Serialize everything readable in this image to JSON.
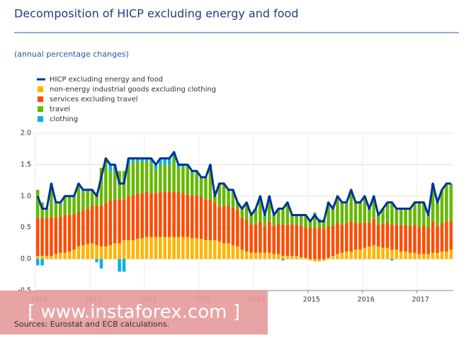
{
  "chart_data": {
    "type": "bar",
    "stacked": true,
    "title": "Decomposition of HICP excluding energy and food",
    "subtitle": "(annual percentage changes)",
    "source": "Sources: Eurostat and ECB calculations.",
    "watermark": "[ www.instaforex.com ]",
    "categories": [
      "2010",
      null,
      null,
      null,
      null,
      null,
      null,
      null,
      null,
      null,
      null,
      null,
      "2011",
      null,
      null,
      null,
      null,
      null,
      null,
      null,
      null,
      null,
      null,
      null,
      "2012",
      null,
      null,
      null,
      null,
      null,
      null,
      null,
      null,
      null,
      null,
      null,
      "2013",
      null,
      null,
      null,
      null,
      null,
      null,
      null,
      null,
      null,
      null,
      null,
      "2014",
      null,
      null,
      null,
      null,
      null,
      null,
      null,
      null,
      null,
      null,
      null,
      "2015",
      null,
      null,
      null,
      null,
      null,
      null,
      null,
      null,
      null,
      null,
      null,
      "2016",
      null,
      null,
      null,
      null,
      null,
      null,
      null,
      null,
      null,
      null,
      null,
      "2017",
      null,
      null,
      null,
      null,
      null,
      null,
      null
    ],
    "ylim": [
      -0.5,
      2.0
    ],
    "yticks": [
      {
        "value": 2,
        "label": "2.0"
      },
      1.5,
      {
        "value": 1,
        "label": "1.0"
      },
      0.5,
      {
        "value": 0,
        "label": "0.0"
      },
      -0.5
    ],
    "grid": true,
    "series": [
      {
        "name": "HICP excluding energy and food",
        "type": "line",
        "color": "#003299",
        "values": [
          1.0,
          0.8,
          0.8,
          1.2,
          0.9,
          0.9,
          1.0,
          1.0,
          1.0,
          1.2,
          1.1,
          1.1,
          1.1,
          1.0,
          1.3,
          1.6,
          1.5,
          1.5,
          1.2,
          1.2,
          1.6,
          1.6,
          1.6,
          1.6,
          1.6,
          1.6,
          1.5,
          1.6,
          1.6,
          1.6,
          1.7,
          1.5,
          1.5,
          1.5,
          1.4,
          1.4,
          1.3,
          1.3,
          1.5,
          1.0,
          1.2,
          1.2,
          1.1,
          1.1,
          0.9,
          0.8,
          0.9,
          0.7,
          0.8,
          1.0,
          0.7,
          1.0,
          0.7,
          0.8,
          0.8,
          0.9,
          0.7,
          0.7,
          0.7,
          0.7,
          0.6,
          0.7,
          0.6,
          0.6,
          0.9,
          0.8,
          1.0,
          0.9,
          0.9,
          1.1,
          0.9,
          0.9,
          1.0,
          0.8,
          1.0,
          0.7,
          0.8,
          0.9,
          0.9,
          0.8,
          0.8,
          0.8,
          0.8,
          0.9,
          0.9,
          0.9,
          0.7,
          1.2,
          0.9,
          1.1,
          1.2,
          1.2
        ]
      },
      {
        "name": "non-energy industrial goods excluding clothing",
        "color": "#ffb400",
        "values": [
          0.05,
          0.05,
          0.05,
          0.05,
          0.08,
          0.1,
          0.1,
          0.12,
          0.15,
          0.2,
          0.22,
          0.24,
          0.25,
          0.22,
          0.2,
          0.2,
          0.22,
          0.25,
          0.25,
          0.3,
          0.3,
          0.3,
          0.32,
          0.33,
          0.35,
          0.35,
          0.35,
          0.35,
          0.35,
          0.35,
          0.35,
          0.35,
          0.35,
          0.35,
          0.33,
          0.33,
          0.32,
          0.3,
          0.3,
          0.3,
          0.28,
          0.25,
          0.25,
          0.22,
          0.2,
          0.15,
          0.12,
          0.1,
          0.1,
          0.1,
          0.1,
          0.1,
          0.08,
          0.08,
          0.05,
          0.05,
          0.05,
          0.05,
          0.03,
          0.02,
          -0.02,
          -0.04,
          -0.04,
          -0.03,
          0.02,
          0.05,
          0.08,
          0.1,
          0.12,
          0.12,
          0.15,
          0.15,
          0.18,
          0.2,
          0.22,
          0.2,
          0.18,
          0.18,
          0.15,
          0.15,
          0.12,
          0.12,
          0.1,
          0.1,
          0.08,
          0.08,
          0.08,
          0.1,
          0.1,
          0.12,
          0.12,
          0.15
        ]
      },
      {
        "name": "services excluding travel",
        "color": "#ff4b00",
        "values": [
          0.6,
          0.6,
          0.6,
          0.62,
          0.58,
          0.58,
          0.6,
          0.58,
          0.56,
          0.55,
          0.55,
          0.56,
          0.6,
          0.62,
          0.65,
          0.7,
          0.72,
          0.7,
          0.7,
          0.65,
          0.7,
          0.72,
          0.72,
          0.72,
          0.72,
          0.7,
          0.7,
          0.72,
          0.72,
          0.72,
          0.72,
          0.72,
          0.7,
          0.68,
          0.68,
          0.68,
          0.68,
          0.65,
          0.65,
          0.6,
          0.55,
          0.6,
          0.6,
          0.6,
          0.58,
          0.5,
          0.5,
          0.45,
          0.45,
          0.5,
          0.42,
          0.5,
          0.45,
          0.48,
          0.5,
          0.5,
          0.5,
          0.5,
          0.5,
          0.48,
          0.5,
          0.5,
          0.5,
          0.48,
          0.5,
          0.48,
          0.5,
          0.45,
          0.45,
          0.48,
          0.42,
          0.42,
          0.4,
          0.38,
          0.42,
          0.35,
          0.38,
          0.4,
          0.4,
          0.4,
          0.42,
          0.42,
          0.42,
          0.45,
          0.42,
          0.45,
          0.42,
          0.5,
          0.42,
          0.45,
          0.48,
          0.45
        ]
      },
      {
        "name": "travel",
        "color": "#65b800",
        "values": [
          0.45,
          0.25,
          0.13,
          0.51,
          0.22,
          0.2,
          0.28,
          0.28,
          0.27,
          0.43,
          0.31,
          0.28,
          0.23,
          0.21,
          0.6,
          0.65,
          0.46,
          0.45,
          0.45,
          0.45,
          0.5,
          0.53,
          0.51,
          0.5,
          0.48,
          0.5,
          0.37,
          0.43,
          0.43,
          0.43,
          0.55,
          0.38,
          0.42,
          0.44,
          0.36,
          0.36,
          0.28,
          0.34,
          0.54,
          0.09,
          0.36,
          0.34,
          0.24,
          0.27,
          0.11,
          0.14,
          0.27,
          0.14,
          0.24,
          0.39,
          0.17,
          0.39,
          0.16,
          0.23,
          0.24,
          0.34,
          0.14,
          0.14,
          0.16,
          0.19,
          0.11,
          0.23,
          0.13,
          0.14,
          0.37,
          0.26,
          0.41,
          0.34,
          0.32,
          0.49,
          0.32,
          0.32,
          0.41,
          0.21,
          0.35,
          0.14,
          0.23,
          0.31,
          0.34,
          0.24,
          0.25,
          0.25,
          0.27,
          0.34,
          0.39,
          0.36,
          0.19,
          0.59,
          0.37,
          0.52,
          0.59,
          0.59
        ]
      },
      {
        "name": "clothing",
        "color": "#00b1ea",
        "values": [
          -0.1,
          -0.1,
          0.02,
          0.02,
          0.02,
          0.02,
          0.02,
          0.02,
          0.02,
          0.02,
          0.02,
          0.02,
          0.02,
          -0.05,
          -0.15,
          0.05,
          0.1,
          0.1,
          -0.2,
          -0.2,
          0.1,
          0.05,
          0.05,
          0.05,
          0.05,
          0.05,
          0.08,
          0.1,
          0.1,
          0.1,
          0.08,
          0.05,
          0.03,
          0.03,
          0.03,
          0.03,
          0.02,
          0.01,
          0.01,
          0.01,
          0.01,
          0.01,
          0.01,
          0.01,
          0.01,
          0.01,
          0.01,
          0.01,
          0.01,
          0.01,
          0.01,
          0.01,
          0.01,
          0.01,
          -0.02,
          0.01,
          0.01,
          0.01,
          0.01,
          0.01,
          0.01,
          0.01,
          0.01,
          0.01,
          0.01,
          0.01,
          0.01,
          0.01,
          0.01,
          0.01,
          0.01,
          0.01,
          0.01,
          0.01,
          0.01,
          0.01,
          0.01,
          0.01,
          -0.02,
          0.01,
          0.01,
          0.01,
          0.01,
          0.01,
          0.01,
          0.01,
          0.01,
          0.01,
          0.01,
          0.01,
          0.01,
          0.01
        ]
      }
    ]
  }
}
